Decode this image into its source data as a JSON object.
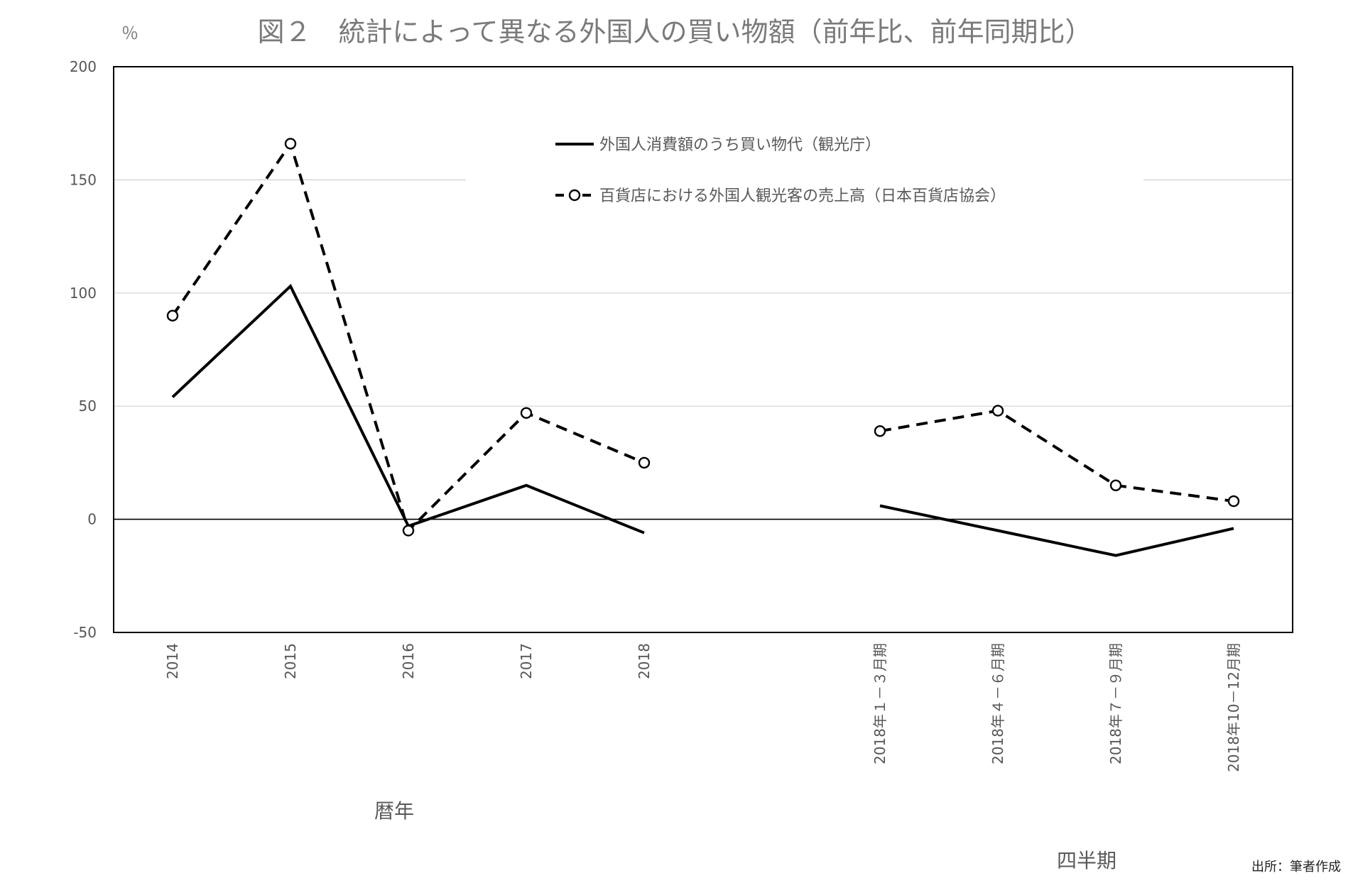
{
  "chart_data": {
    "type": "line",
    "title": "図２　統計によって異なる外国人の買い物額（前年比、前年同期比）",
    "unit_label": "％",
    "y_ticks": [
      "200",
      "150",
      "100",
      "50",
      "0",
      "-50"
    ],
    "ylim": [
      -50,
      200
    ],
    "grid": true,
    "legend_position": "top-center",
    "categories": [
      "2014",
      "2015",
      "2016",
      "2017",
      "2018",
      "2018年１－３月期",
      "2018年４－６月期",
      "2018年７－９月期",
      "2018年10－12月期"
    ],
    "category_groups": [
      {
        "label": "暦年",
        "categories": [
          "2014",
          "2015",
          "2016",
          "2017",
          "2018"
        ]
      },
      {
        "label": "四半期",
        "categories": [
          "2018年１－３月期",
          "2018年４－６月期",
          "2018年７－９月期",
          "2018年10－12月期"
        ]
      }
    ],
    "series": [
      {
        "name": "外国人消費額のうち買い物代（観光庁）",
        "style": "solid",
        "marker": "none",
        "color": "#000000",
        "segments": [
          [
            54,
            103,
            -3,
            15,
            -6
          ],
          [
            6,
            -5,
            -16,
            -4
          ]
        ]
      },
      {
        "name": "百貨店における外国人観光客の売上高（日本百貨店協会）",
        "style": "dashed",
        "marker": "circle",
        "color": "#000000",
        "segments": [
          [
            90,
            166,
            -5,
            47,
            25
          ],
          [
            39,
            48,
            15,
            8
          ]
        ]
      }
    ],
    "source": "出所：筆者作成"
  }
}
